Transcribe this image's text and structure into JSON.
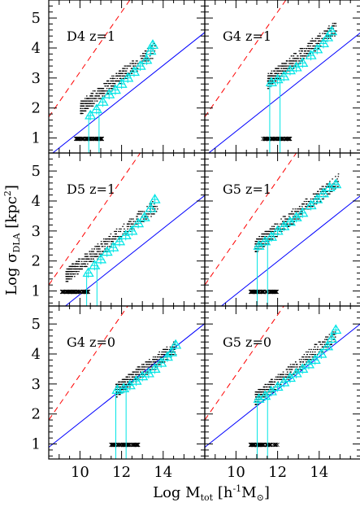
{
  "chart_data": {
    "type": "scatter",
    "layout": "3 rows x 2 columns, shared axes",
    "xlabel": "Log M_tot [h⁻¹M⊙]",
    "ylabel": "Log σ_DLA [kpc²]",
    "xlabel_parts": {
      "prefix": "Log M",
      "sub": "tot",
      "unit_open": "[h",
      "sup": "-1",
      "unit_mid": "M",
      "unit_sub": "⊙",
      "unit_close": "]"
    },
    "ylabel_parts": {
      "prefix": "Log σ",
      "sub": "DLA",
      "unit": "[kpc",
      "sup": "2",
      "unit_close": "]"
    },
    "xlim": [
      8.5,
      16
    ],
    "ylim": [
      0.5,
      5.6
    ],
    "xticks": [
      10,
      12,
      14
    ],
    "yticks": [
      1,
      2,
      3,
      4,
      5
    ],
    "colors": {
      "red_dashed": "#ff0000",
      "blue_line": "#0000ff",
      "cyan_markers": "#00e5e5",
      "points": "#000000"
    },
    "panels": [
      {
        "label": "D4  z=1",
        "row": 0,
        "col": 0,
        "mass_min": 10.0,
        "mass_max": 13.6,
        "sigma_at_min": 2.0,
        "slope": 0.55,
        "red_intercept": 1.7,
        "blue_x0": 9.6,
        "blue_y0": 1.0,
        "triangles": [
          [
            10.5,
            1.75
          ],
          [
            10.8,
            1.95
          ],
          [
            11.1,
            2.2
          ],
          [
            11.4,
            2.45
          ],
          [
            11.7,
            2.6
          ],
          [
            12.0,
            2.8
          ],
          [
            12.3,
            3.0
          ],
          [
            12.6,
            3.2
          ],
          [
            12.9,
            3.4
          ],
          [
            13.2,
            3.6
          ],
          [
            13.4,
            3.9
          ],
          [
            13.5,
            4.1
          ]
        ],
        "detect_floor": 10.5
      },
      {
        "label": "G4  z=1",
        "row": 0,
        "col": 1,
        "mass_min": 11.5,
        "mass_max": 14.8,
        "sigma_at_min": 2.9,
        "slope": 0.55,
        "red_intercept": 1.7,
        "blue_x0": 9.6,
        "blue_y0": 1.0,
        "triangles": [
          [
            11.7,
            2.85
          ],
          [
            12.0,
            2.95
          ],
          [
            12.3,
            3.05
          ],
          [
            12.6,
            3.25
          ],
          [
            12.9,
            3.35
          ],
          [
            13.2,
            3.5
          ],
          [
            13.6,
            3.75
          ],
          [
            13.9,
            3.95
          ],
          [
            14.2,
            4.15
          ],
          [
            14.4,
            4.35
          ],
          [
            14.6,
            4.55
          ]
        ],
        "detect_floor": 11.6
      },
      {
        "label": "D5  z=1",
        "row": 1,
        "col": 0,
        "mass_min": 9.3,
        "mass_max": 13.7,
        "sigma_at_min": 1.5,
        "slope": 0.55,
        "red_intercept": 1.2,
        "blue_x0": 9.3,
        "blue_y0": 0.5,
        "triangles": [
          [
            10.4,
            1.6
          ],
          [
            10.7,
            1.85
          ],
          [
            11.0,
            2.05
          ],
          [
            11.3,
            2.3
          ],
          [
            11.6,
            2.45
          ],
          [
            11.9,
            2.65
          ],
          [
            12.2,
            2.85
          ],
          [
            12.5,
            3.0
          ],
          [
            12.8,
            3.25
          ],
          [
            13.1,
            3.45
          ],
          [
            13.4,
            3.75
          ],
          [
            13.6,
            4.05
          ]
        ],
        "detect_floor": 10.4
      },
      {
        "label": "G5  z=1",
        "row": 1,
        "col": 1,
        "mass_min": 10.9,
        "mass_max": 14.9,
        "sigma_at_min": 2.5,
        "slope": 0.55,
        "red_intercept": 1.2,
        "blue_x0": 9.3,
        "blue_y0": 0.5,
        "triangles": [
          [
            11.1,
            2.5
          ],
          [
            11.4,
            2.65
          ],
          [
            11.7,
            2.8
          ],
          [
            12.0,
            3.0
          ],
          [
            12.3,
            3.15
          ],
          [
            12.6,
            3.3
          ],
          [
            12.9,
            3.45
          ],
          [
            13.2,
            3.6
          ],
          [
            13.6,
            3.85
          ],
          [
            13.9,
            4.05
          ],
          [
            14.2,
            4.25
          ],
          [
            14.5,
            4.45
          ],
          [
            14.8,
            4.55
          ]
        ],
        "detect_floor": 11.0
      },
      {
        "label": "G4  z=0",
        "row": 2,
        "col": 0,
        "mass_min": 11.7,
        "mass_max": 14.6,
        "sigma_at_min": 2.8,
        "slope": 0.5,
        "red_intercept": 1.8,
        "blue_x0": 8.7,
        "blue_y0": 1.0,
        "triangles": [
          [
            11.8,
            2.8
          ],
          [
            12.1,
            2.85
          ],
          [
            12.4,
            2.95
          ],
          [
            12.7,
            3.1
          ],
          [
            13.0,
            3.25
          ],
          [
            13.3,
            3.35
          ],
          [
            13.6,
            3.5
          ],
          [
            13.9,
            3.7
          ],
          [
            14.2,
            3.9
          ],
          [
            14.4,
            4.05
          ],
          [
            14.6,
            4.3
          ]
        ],
        "detect_floor": 11.8
      },
      {
        "label": "G5  z=0",
        "row": 2,
        "col": 1,
        "mass_min": 10.9,
        "mass_max": 14.8,
        "sigma_at_min": 2.5,
        "slope": 0.55,
        "red_intercept": 1.8,
        "blue_x0": 8.7,
        "blue_y0": 1.0,
        "triangles": [
          [
            11.1,
            2.5
          ],
          [
            11.4,
            2.6
          ],
          [
            11.7,
            2.75
          ],
          [
            12.0,
            2.9
          ],
          [
            12.3,
            3.05
          ],
          [
            12.6,
            3.2
          ],
          [
            12.9,
            3.35
          ],
          [
            13.2,
            3.5
          ],
          [
            13.5,
            3.65
          ],
          [
            13.8,
            3.8
          ],
          [
            14.1,
            4.0
          ],
          [
            14.4,
            4.25
          ],
          [
            14.6,
            4.5
          ],
          [
            14.8,
            4.8
          ]
        ],
        "detect_floor": 11.0
      }
    ]
  }
}
